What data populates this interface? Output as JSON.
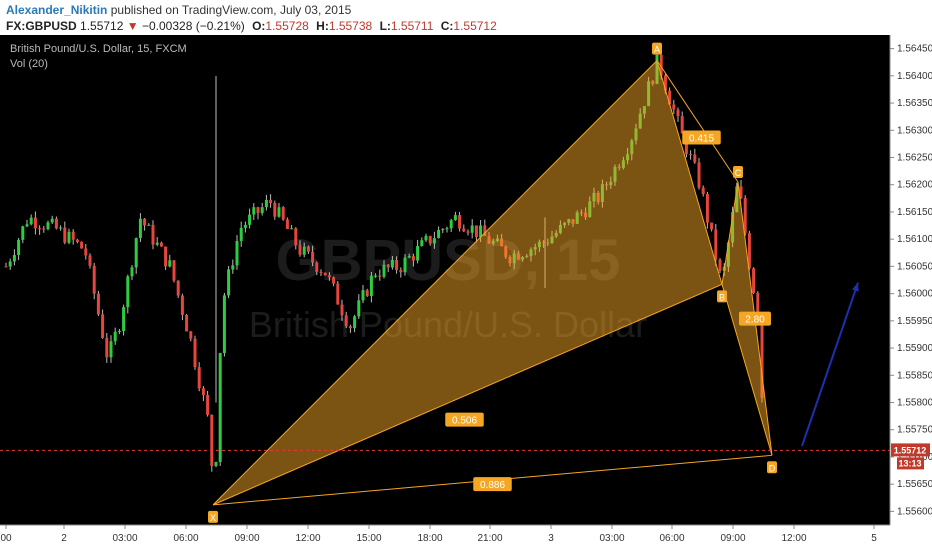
{
  "header": {
    "author": "Alexander_Nikitin",
    "published": "published on TradingView.com, July 03, 2015",
    "symbol": "FX:GBPUSD",
    "last": "1.55712",
    "arrow": "▼",
    "change": "−0.00328 (−0.21%)",
    "o_label": "O:",
    "o_value": "1.55728",
    "h_label": "H:",
    "h_value": "1.55738",
    "l_label": "L:",
    "l_value": "1.55711",
    "c_label": "C:",
    "c_value": "1.55712"
  },
  "legend": {
    "title": "British Pound/U.S. Dollar, 15, FXCM",
    "volume": "Vol (20)"
  },
  "watermark": {
    "symbol": "GBPUSD, 15",
    "name": "British Pound/U.S. Dollar"
  },
  "colors": {
    "background": "#000000",
    "up": "#2ecc40",
    "down": "#e8453c",
    "pattern": "#f5a623",
    "arrow": "#1f2fb0",
    "price_line": "#e53935"
  },
  "chart_data": {
    "type": "candlestick",
    "y_axis_ticks": [
      "1.56450",
      "1.56400",
      "1.56350",
      "1.56300",
      "1.56250",
      "1.56200",
      "1.56150",
      "1.56100",
      "1.56050",
      "1.56000",
      "1.55950",
      "1.55900",
      "1.55850",
      "1.55800",
      "1.55750",
      "1.55700",
      "1.55650",
      "1.55600"
    ],
    "ylim": [
      1.55575,
      1.56475
    ],
    "x_axis_ticks": [
      "00",
      "2",
      "03:00",
      "06:00",
      "09:00",
      "12:00",
      "15:00",
      "18:00",
      "21:00",
      "3",
      "03:00",
      "06:00",
      "09:00",
      "12:00",
      "5"
    ],
    "current_price": "1.55712",
    "current_time": "13:13",
    "pattern": {
      "points": [
        {
          "label": "X",
          "price": 1.55612
        },
        {
          "label": "A",
          "price": 1.56428
        },
        {
          "label": "B",
          "price": 1.56017
        },
        {
          "label": "C",
          "price": 1.56205
        },
        {
          "label": "D",
          "price": 1.55703
        }
      ],
      "ratios": [
        "0.415",
        "0.506",
        "2.80",
        "0.886"
      ]
    }
  }
}
